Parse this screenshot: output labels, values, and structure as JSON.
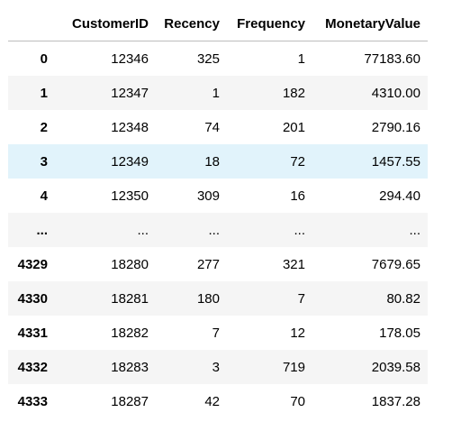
{
  "table": {
    "columns": [
      "",
      "CustomerID",
      "Recency",
      "Frequency",
      "MonetaryValue"
    ],
    "rows": [
      {
        "index": "0",
        "cells": [
          "12346",
          "325",
          "1",
          "77183.60"
        ]
      },
      {
        "index": "1",
        "cells": [
          "12347",
          "1",
          "182",
          "4310.00"
        ]
      },
      {
        "index": "2",
        "cells": [
          "12348",
          "74",
          "201",
          "2790.16"
        ]
      },
      {
        "index": "3",
        "cells": [
          "12349",
          "18",
          "72",
          "1457.55"
        ],
        "hovered": true
      },
      {
        "index": "4",
        "cells": [
          "12350",
          "309",
          "16",
          "294.40"
        ]
      },
      {
        "index": "...",
        "cells": [
          "...",
          "...",
          "...",
          "..."
        ]
      },
      {
        "index": "4329",
        "cells": [
          "18280",
          "277",
          "321",
          "7679.65"
        ]
      },
      {
        "index": "4330",
        "cells": [
          "18281",
          "180",
          "7",
          "80.82"
        ]
      },
      {
        "index": "4331",
        "cells": [
          "18282",
          "7",
          "12",
          "178.05"
        ]
      },
      {
        "index": "4332",
        "cells": [
          "18283",
          "3",
          "719",
          "2039.58"
        ]
      },
      {
        "index": "4333",
        "cells": [
          "18287",
          "42",
          "70",
          "1837.28"
        ]
      }
    ]
  },
  "colors": {
    "stripe": "#f5f5f5",
    "hover": "#e1f3fb",
    "header_border": "#bdbdbd"
  }
}
